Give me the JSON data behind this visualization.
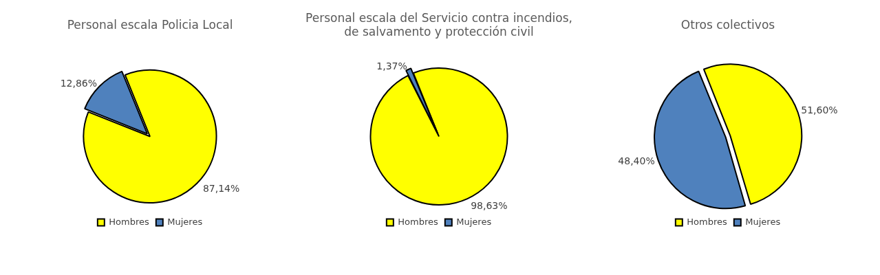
{
  "chart_data": [
    {
      "type": "pie",
      "title": "Personal escala Policia Local",
      "categories": [
        "Hombres",
        "Mujeres"
      ],
      "values": [
        87.14,
        12.86
      ],
      "colors": [
        "#ffff00",
        "#4f81bd"
      ],
      "value_labels": [
        "87,14%",
        "12,86%"
      ],
      "legend": "bottom"
    },
    {
      "type": "pie",
      "title": "Personal escala del Servicio contra incendios, de salvamento y protección civil",
      "categories": [
        "Hombres",
        "Mujeres"
      ],
      "values": [
        98.63,
        1.37
      ],
      "colors": [
        "#ffff00",
        "#4f81bd"
      ],
      "value_labels": [
        "98,63%",
        "1,37%"
      ],
      "legend": "bottom"
    },
    {
      "type": "pie",
      "title": "Otros colectivos",
      "categories": [
        "Hombres",
        "Mujeres"
      ],
      "values": [
        51.6,
        48.4
      ],
      "colors": [
        "#ffff00",
        "#4f81bd"
      ],
      "value_labels": [
        "51,60%",
        "48,40%"
      ],
      "legend": "bottom"
    }
  ]
}
